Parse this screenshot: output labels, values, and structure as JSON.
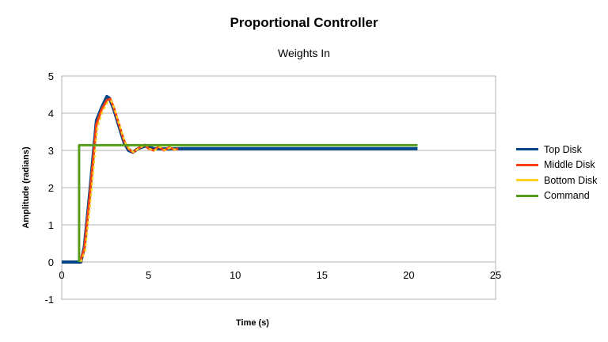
{
  "chart_data": {
    "type": "line",
    "title": "Proportional Controller",
    "subtitle": "Weights In",
    "xlabel": "Time (s)",
    "ylabel": "Amplitude (radians)",
    "xlim": [
      0,
      25
    ],
    "ylim": [
      -1,
      5
    ],
    "xticks": [
      0,
      5,
      10,
      15,
      20,
      25
    ],
    "yticks": [
      -1,
      0,
      1,
      2,
      3,
      4,
      5
    ],
    "grid": "horizontal",
    "legend_position": "right",
    "series": [
      {
        "name": "Top Disk",
        "color": "#004586",
        "x": [
          0,
          1.0,
          1.1,
          1.3,
          1.6,
          2.0,
          2.3,
          2.6,
          2.75,
          3.0,
          3.3,
          3.6,
          3.85,
          4.1,
          4.4,
          4.8,
          5.3,
          6.0,
          7.0,
          10.0,
          15.0,
          20.5
        ],
        "y": [
          0,
          0,
          0,
          0.4,
          1.8,
          3.8,
          4.15,
          4.45,
          4.4,
          4.1,
          3.65,
          3.2,
          3.0,
          2.95,
          3.05,
          3.12,
          3.05,
          3.04,
          3.05,
          3.05,
          3.05,
          3.05
        ]
      },
      {
        "name": "Middle Disk",
        "color": "#ff420e",
        "x": [
          1.05,
          1.3,
          1.6,
          2.0,
          2.3,
          2.6,
          2.8,
          3.0,
          3.3,
          3.6,
          3.85,
          4.1,
          4.4,
          4.8,
          5.0,
          5.3,
          5.6,
          5.9,
          6.2,
          6.5,
          6.7
        ],
        "y": [
          0,
          0.35,
          1.7,
          3.7,
          4.1,
          4.35,
          4.38,
          4.15,
          3.7,
          3.25,
          3.05,
          2.95,
          3.05,
          3.15,
          3.05,
          3.0,
          3.1,
          3.0,
          3.08,
          3.02,
          3.05
        ]
      },
      {
        "name": "Bottom Disk",
        "color": "#ffd320",
        "x": [
          1.1,
          1.35,
          1.65,
          2.05,
          2.35,
          2.65,
          2.85,
          3.05,
          3.35,
          3.65,
          3.9,
          4.15,
          4.45,
          4.85,
          5.05,
          5.35,
          5.65,
          5.95,
          6.25,
          6.55,
          6.7
        ],
        "y": [
          0,
          0.3,
          1.6,
          3.6,
          4.05,
          4.3,
          4.33,
          4.1,
          3.65,
          3.22,
          3.03,
          2.95,
          3.06,
          3.16,
          3.04,
          3.0,
          3.1,
          3.0,
          3.07,
          3.02,
          3.05
        ]
      },
      {
        "name": "Command",
        "color": "#579d1c",
        "x": [
          1.0,
          1.0,
          20.5
        ],
        "y": [
          0,
          3.14,
          3.14
        ]
      }
    ]
  }
}
